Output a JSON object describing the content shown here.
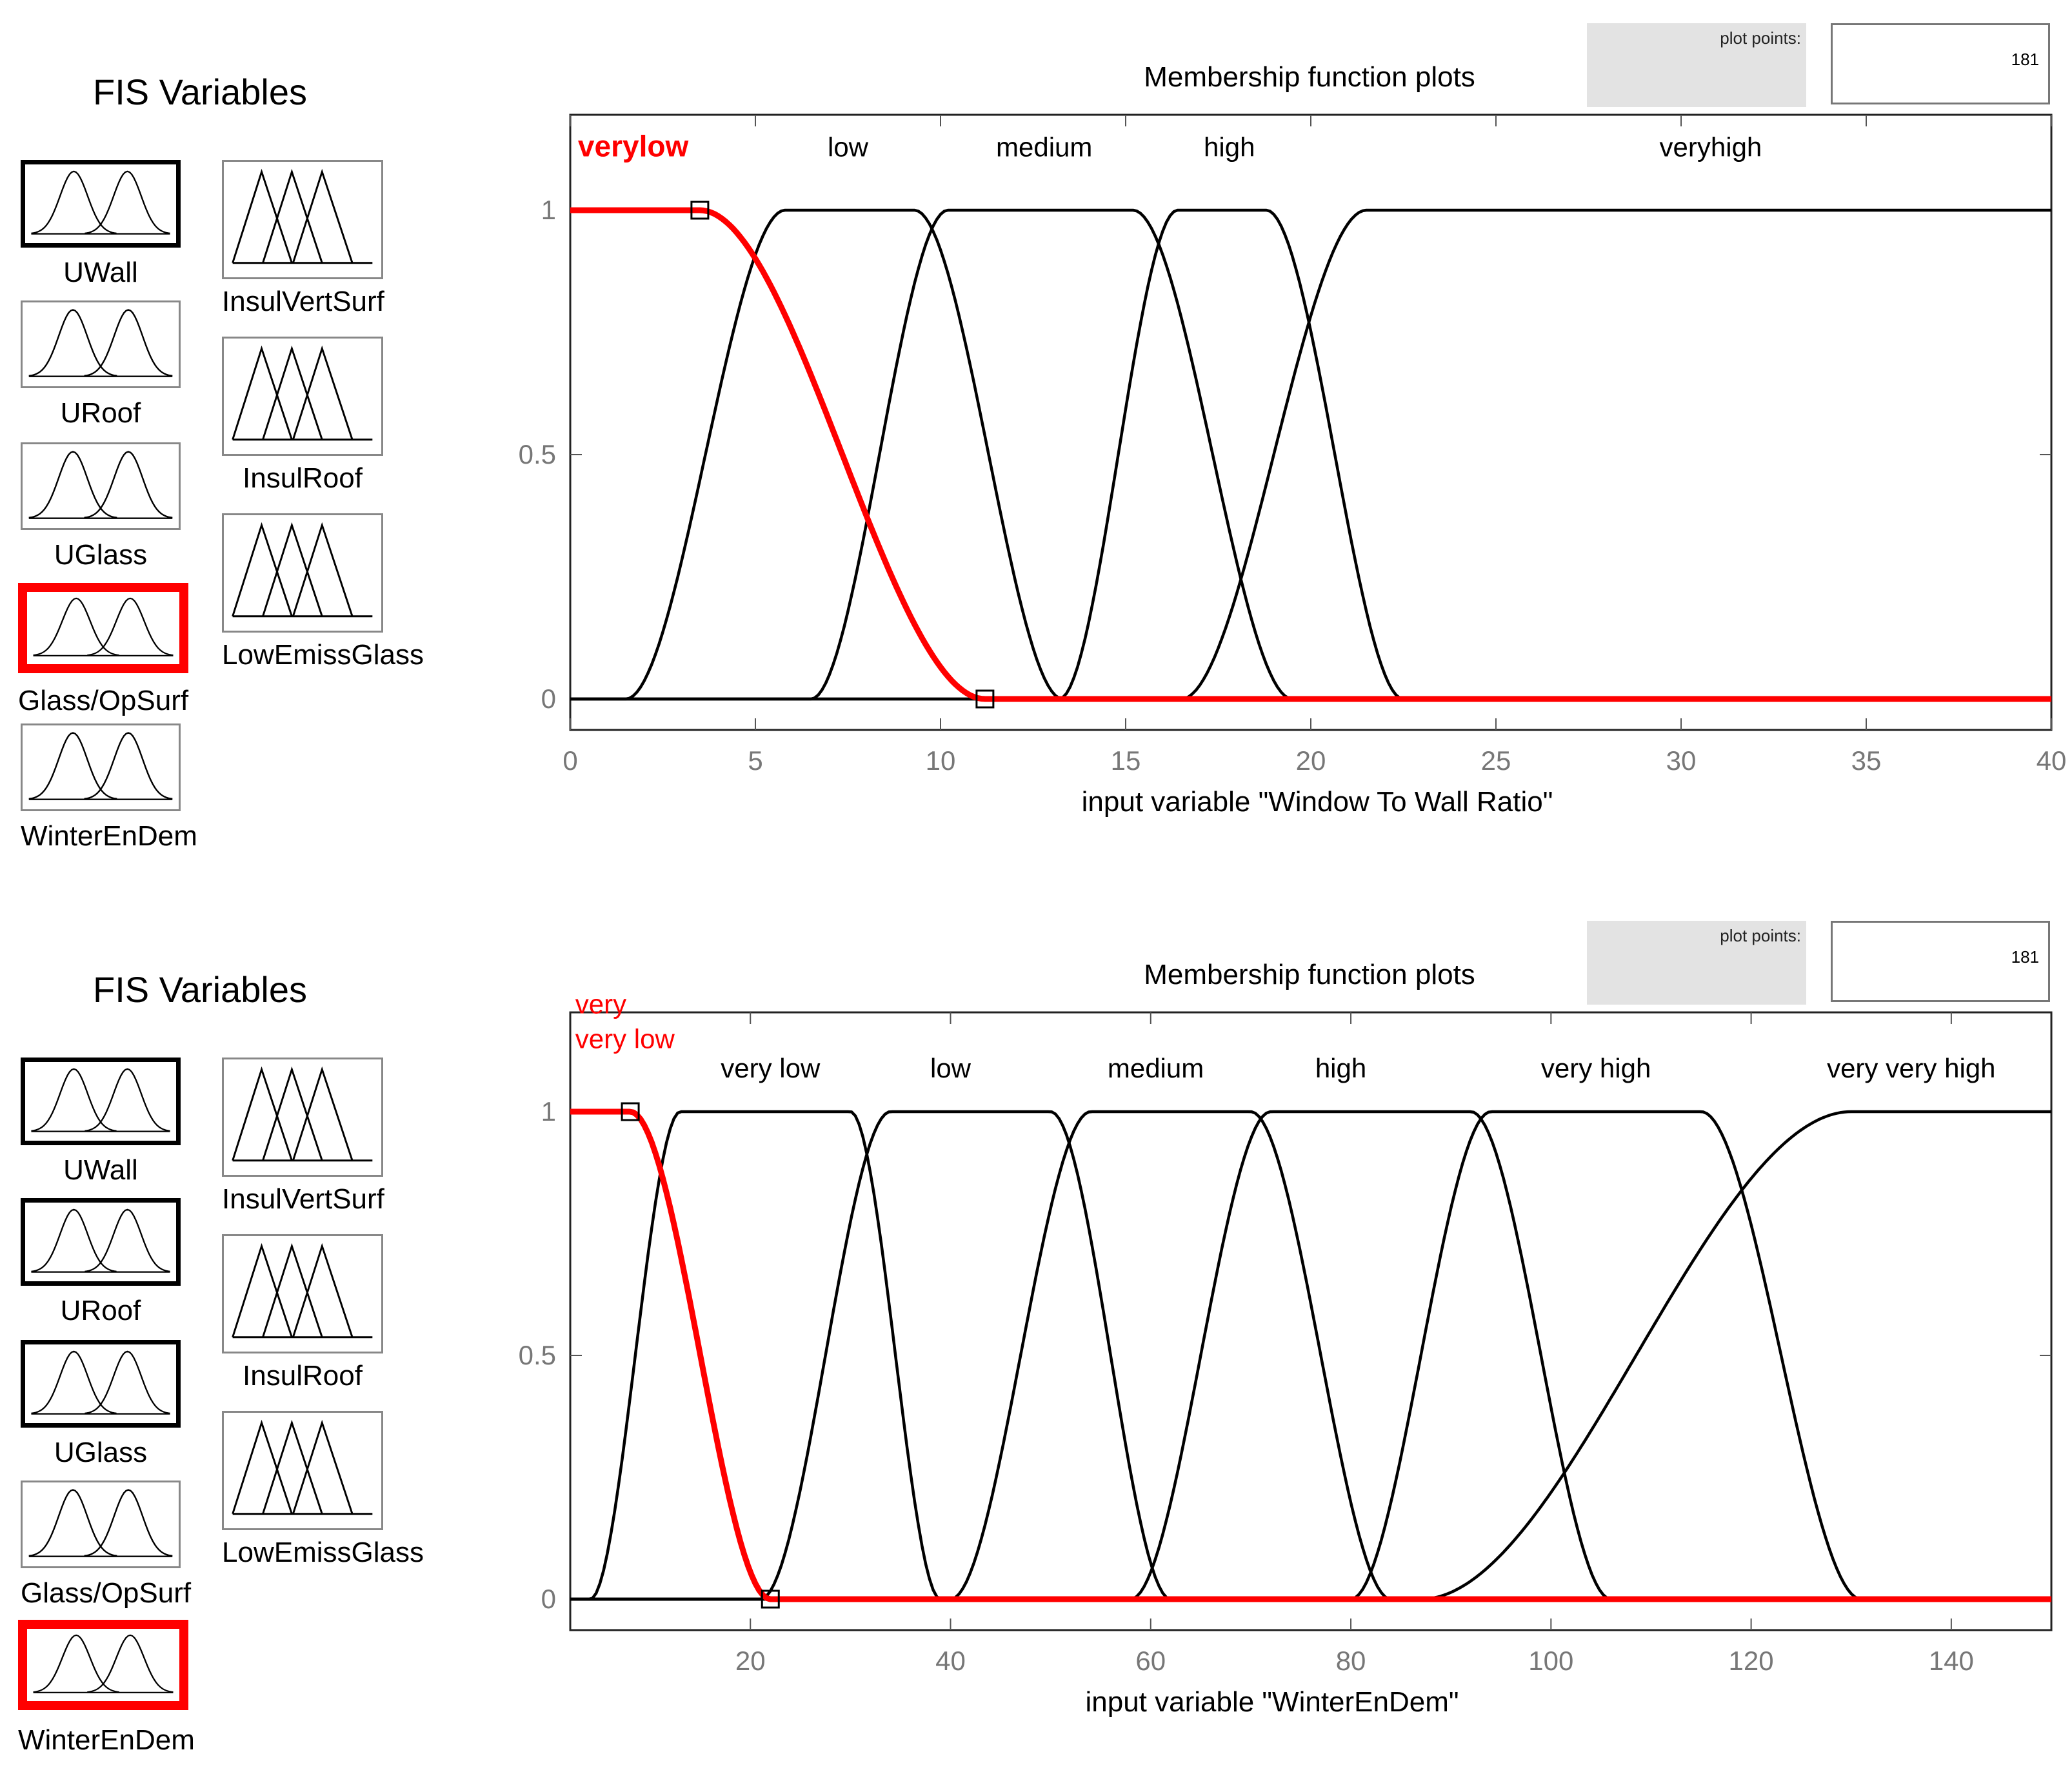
{
  "panels": [
    {
      "fis_title": "FIS Variables",
      "variables": [
        {
          "label": "UWall",
          "state": "selected",
          "icon": "gaussian-mf-icon"
        },
        {
          "label": "URoof",
          "state": "normal",
          "icon": "gaussian-mf-icon"
        },
        {
          "label": "UGlass",
          "state": "normal",
          "icon": "gaussian-mf-icon"
        },
        {
          "label": "Glass/OpSurf",
          "state": "active",
          "icon": "gaussian-mf-icon"
        },
        {
          "label": "WinterEnDem",
          "state": "normal",
          "icon": "gaussian-mf-icon"
        },
        {
          "label": "InsulVertSurf",
          "state": "normal",
          "icon": "triangular-mf-icon"
        },
        {
          "label": "InsulRoof",
          "state": "normal",
          "icon": "triangular-mf-icon"
        },
        {
          "label": "LowEmissGlass",
          "state": "normal",
          "icon": "triangular-mf-icon"
        }
      ],
      "plot_title": "Membership function plots",
      "plot_points_label": "plot points:",
      "plot_points_value": "181",
      "chart_data": {
        "type": "line",
        "xlabel": "input variable \"Window To Wall Ratio\"",
        "xlim": [
          0,
          40
        ],
        "ylim": [
          0,
          1
        ],
        "xticks": [
          0,
          5,
          10,
          15,
          20,
          25,
          30,
          35,
          40
        ],
        "yticks": [
          0,
          0.5,
          1
        ],
        "ytick_labels": [
          "0",
          "0.5",
          "1"
        ],
        "selected_color": "#ff0000",
        "series": [
          {
            "name": "verylow",
            "selected": true,
            "label_x": 1.7,
            "label_y": 1.11,
            "points": [
              [
                0,
                1
              ],
              [
                3.5,
                1
              ],
              [
                11.2,
                0
              ],
              [
                40,
                0
              ]
            ]
          },
          {
            "name": "low",
            "selected": false,
            "label_x": 7.5,
            "label_y": 1.11,
            "points": [
              [
                0,
                0
              ],
              [
                1.5,
                0
              ],
              [
                5.8,
                1
              ],
              [
                9.3,
                1
              ],
              [
                13.3,
                0
              ],
              [
                40,
                0
              ]
            ]
          },
          {
            "name": "medium",
            "selected": false,
            "label_x": 12.8,
            "label_y": 1.11,
            "points": [
              [
                0,
                0
              ],
              [
                6.5,
                0
              ],
              [
                10.2,
                1
              ],
              [
                15.2,
                1
              ],
              [
                19.5,
                0
              ],
              [
                40,
                0
              ]
            ]
          },
          {
            "name": "high",
            "selected": false,
            "label_x": 17.8,
            "label_y": 1.11,
            "points": [
              [
                0,
                0
              ],
              [
                13.2,
                0
              ],
              [
                16.4,
                1
              ],
              [
                18.8,
                1
              ],
              [
                22.5,
                0
              ],
              [
                40,
                0
              ]
            ]
          },
          {
            "name": "veryhigh",
            "selected": false,
            "label_x": 30.8,
            "label_y": 1.11,
            "points": [
              [
                0,
                0
              ],
              [
                16.5,
                0
              ],
              [
                21.5,
                1
              ],
              [
                40,
                1
              ]
            ]
          }
        ]
      }
    },
    {
      "fis_title": "FIS Variables",
      "variables": [
        {
          "label": "UWall",
          "state": "selected",
          "icon": "gaussian-mf-icon"
        },
        {
          "label": "URoof",
          "state": "selected",
          "icon": "gaussian-mf-icon"
        },
        {
          "label": "UGlass",
          "state": "selected",
          "icon": "gaussian-mf-icon"
        },
        {
          "label": "Glass/OpSurf",
          "state": "normal",
          "icon": "gaussian-mf-icon"
        },
        {
          "label": "WinterEnDem",
          "state": "active",
          "icon": "gaussian-mf-icon"
        },
        {
          "label": "InsulVertSurf",
          "state": "normal",
          "icon": "triangular-mf-icon"
        },
        {
          "label": "InsulRoof",
          "state": "normal",
          "icon": "triangular-mf-icon"
        },
        {
          "label": "LowEmissGlass",
          "state": "normal",
          "icon": "triangular-mf-icon"
        }
      ],
      "plot_title": "Membership function plots",
      "plot_points_label": "plot points:",
      "plot_points_value": "181",
      "chart_data": {
        "type": "line",
        "xlabel": "input variable \"WinterEnDem\"",
        "xlim": [
          2,
          150
        ],
        "ylim": [
          0,
          1
        ],
        "xticks": [
          20,
          40,
          60,
          80,
          100,
          120,
          140
        ],
        "yticks": [
          0,
          0.5,
          1
        ],
        "ytick_labels": [
          "0",
          "0.5",
          "1"
        ],
        "selected_color": "#ff0000",
        "series": [
          {
            "name": "very very low",
            "label_lines": [
              "very",
              "very low"
            ],
            "selected": true,
            "label_x": 2.5,
            "label_y": 1.13,
            "points": [
              [
                2,
                1
              ],
              [
                8,
                1
              ],
              [
                22,
                0
              ],
              [
                150,
                0
              ]
            ]
          },
          {
            "name": "very low",
            "selected": false,
            "label_x": 22,
            "label_y": 1.07,
            "points": [
              [
                2,
                0
              ],
              [
                4,
                0
              ],
              [
                13,
                1
              ],
              [
                30,
                1
              ],
              [
                39,
                0
              ],
              [
                150,
                0
              ]
            ]
          },
          {
            "name": "low",
            "selected": false,
            "label_x": 40,
            "label_y": 1.07,
            "points": [
              [
                2,
                0
              ],
              [
                21,
                0
              ],
              [
                34,
                1
              ],
              [
                50,
                1
              ],
              [
                62,
                0
              ],
              [
                150,
                0
              ]
            ]
          },
          {
            "name": "medium",
            "selected": false,
            "label_x": 60.5,
            "label_y": 1.07,
            "points": [
              [
                2,
                0
              ],
              [
                40,
                0
              ],
              [
                54,
                1
              ],
              [
                70,
                1
              ],
              [
                84,
                0
              ],
              [
                150,
                0
              ]
            ]
          },
          {
            "name": "high",
            "selected": false,
            "label_x": 79,
            "label_y": 1.07,
            "points": [
              [
                2,
                0
              ],
              [
                58,
                0
              ],
              [
                72,
                1
              ],
              [
                92,
                1
              ],
              [
                106,
                0
              ],
              [
                150,
                0
              ]
            ]
          },
          {
            "name": "very high",
            "selected": false,
            "label_x": 104.5,
            "label_y": 1.07,
            "points": [
              [
                2,
                0
              ],
              [
                80,
                0
              ],
              [
                94,
                1
              ],
              [
                115,
                1
              ],
              [
                131,
                0
              ],
              [
                150,
                0
              ]
            ]
          },
          {
            "name": "very very high",
            "selected": false,
            "label_x": 136,
            "label_y": 1.07,
            "points": [
              [
                2,
                0
              ],
              [
                87,
                0
              ],
              [
                130,
                1
              ],
              [
                150,
                1
              ]
            ]
          }
        ]
      }
    }
  ]
}
